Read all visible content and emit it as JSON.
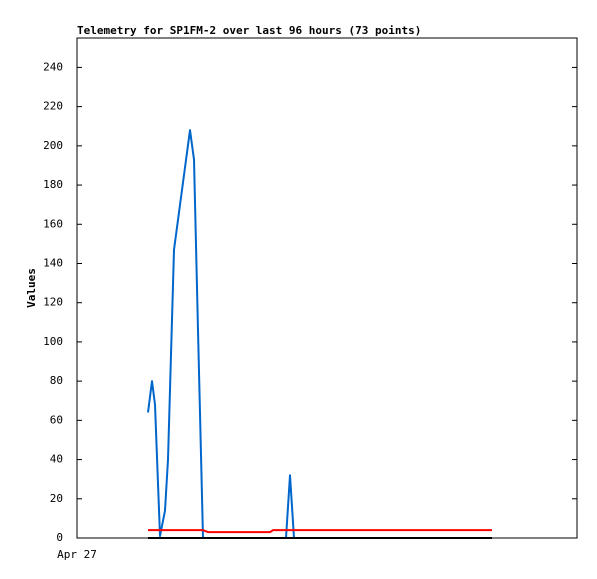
{
  "chart_data": {
    "type": "line",
    "title": "Telemetry for SP1FM-2 over last 96 hours (73 points)",
    "y_label": "Values",
    "x": [
      14.2,
      15,
      15.6,
      16.6,
      17.6,
      18.2,
      19.4,
      22.6,
      23.4,
      24.2,
      25.2,
      26.2,
      38.6,
      39.2,
      41.8,
      42.6,
      43.4,
      83
    ],
    "xlim": [
      0,
      100
    ],
    "xticks": [
      {
        "value": 0,
        "label": "Apr 27"
      }
    ],
    "ylim": [
      0,
      255
    ],
    "yticks": [
      0,
      20,
      40,
      60,
      80,
      100,
      120,
      140,
      160,
      180,
      200,
      220,
      240
    ],
    "series": [
      {
        "color": "#0066cc",
        "values": [
          64,
          80,
          68,
          1,
          14,
          40,
          147,
          208,
          193,
          106,
          0,
          0,
          0,
          0,
          0,
          32,
          0,
          0
        ]
      },
      {
        "color": "#ff0000",
        "values": [
          4,
          4,
          4,
          4,
          4,
          4,
          4,
          4,
          4,
          4,
          4,
          3,
          3,
          4,
          4,
          4,
          4,
          4
        ]
      },
      {
        "color": "#000000",
        "values": [
          0,
          0,
          0,
          0,
          0,
          0,
          0,
          0,
          0,
          0,
          0,
          0,
          0,
          0,
          0,
          0,
          0,
          0
        ]
      }
    ]
  }
}
